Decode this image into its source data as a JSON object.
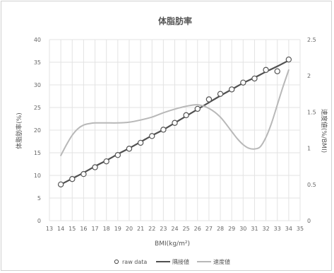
{
  "chart_data": {
    "type": "line",
    "title": "体脂肪率",
    "xlabel": "BMI(kg/m²)",
    "ylabel_left": "体脂肪率(%)",
    "ylabel_right": "速度値(%/BMI)",
    "xlim": [
      13,
      35
    ],
    "ylim_left": [
      0,
      40
    ],
    "ylim_right": [
      0,
      2.5
    ],
    "x_ticks": [
      13,
      14,
      15,
      16,
      17,
      18,
      19,
      20,
      21,
      22,
      23,
      24,
      25,
      26,
      27,
      28,
      29,
      30,
      31,
      32,
      33,
      34,
      35
    ],
    "y_ticks_left": [
      0,
      5,
      10,
      15,
      20,
      25,
      30,
      35,
      40
    ],
    "y_ticks_right": [
      "0",
      "0.5",
      "1",
      "1.5",
      "2",
      "2.5"
    ],
    "grid": true,
    "legend_position": "bottom",
    "series": [
      {
        "name": "raw data",
        "kind": "scatter",
        "axis": "left",
        "color": "#555555",
        "x": [
          14,
          15,
          16,
          17,
          18,
          19,
          20,
          21,
          22,
          23,
          24,
          25,
          26,
          27,
          28,
          29,
          30,
          31,
          32,
          33,
          34
        ],
        "y": [
          8.0,
          9.2,
          10.3,
          11.8,
          13.1,
          14.5,
          15.9,
          17.2,
          18.7,
          20.1,
          21.6,
          23.3,
          24.7,
          26.8,
          28.0,
          29.0,
          30.5,
          31.4,
          33.3,
          33.0,
          35.6
        ]
      },
      {
        "name": "隅接値",
        "kind": "line",
        "axis": "left",
        "color": "#505050",
        "x": [
          14,
          15,
          16,
          17,
          18,
          19,
          20,
          21,
          22,
          23,
          24,
          25,
          26,
          27,
          28,
          29,
          30,
          31,
          32,
          33,
          34
        ],
        "y": [
          8.0,
          9.3,
          10.6,
          12.0,
          13.3,
          14.7,
          16.0,
          17.4,
          18.8,
          20.1,
          21.6,
          23.1,
          24.6,
          26.1,
          27.6,
          29.0,
          30.4,
          31.6,
          32.9,
          34.1,
          35.4
        ]
      },
      {
        "name": "速度値",
        "kind": "line",
        "axis": "right",
        "color": "#b8b8b8",
        "x": [
          14,
          14.5,
          15,
          15.5,
          16,
          16.5,
          17,
          18,
          19,
          20,
          21,
          22,
          23,
          24,
          25,
          26,
          27,
          28,
          29,
          29.5,
          30,
          30.5,
          31,
          31.5,
          32,
          32.5,
          33,
          33.5,
          34
        ],
        "y": [
          0.9,
          1.05,
          1.18,
          1.27,
          1.32,
          1.34,
          1.35,
          1.35,
          1.35,
          1.36,
          1.39,
          1.43,
          1.49,
          1.54,
          1.58,
          1.6,
          1.55,
          1.43,
          1.23,
          1.13,
          1.05,
          1.0,
          0.99,
          1.02,
          1.15,
          1.35,
          1.6,
          1.85,
          2.08
        ]
      }
    ]
  }
}
